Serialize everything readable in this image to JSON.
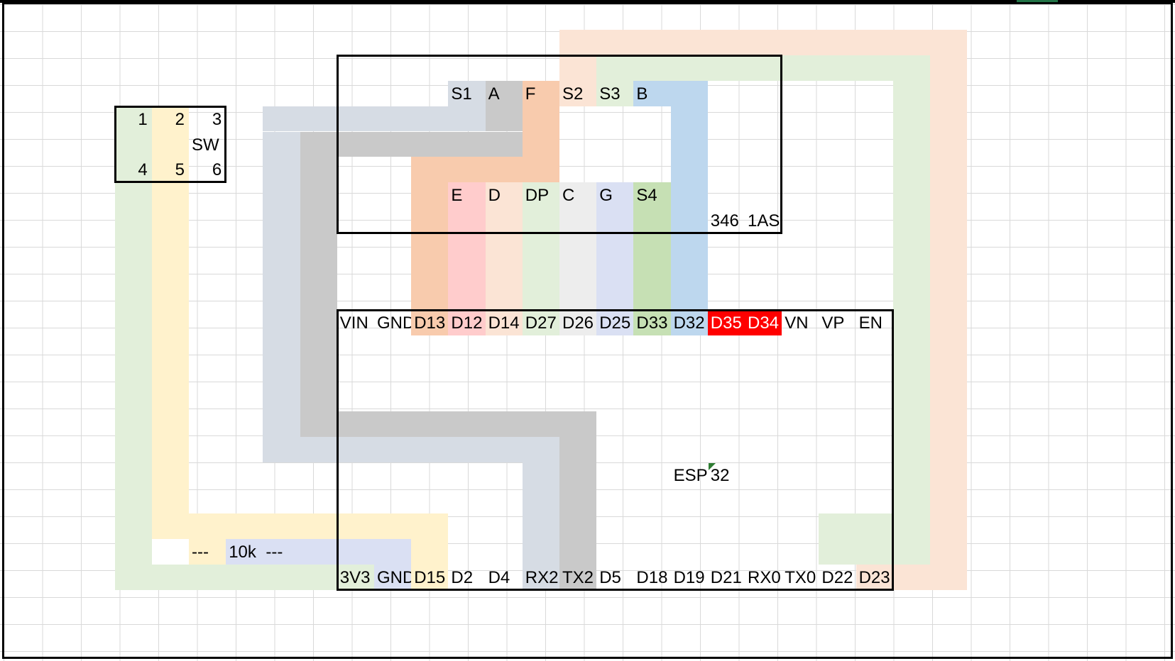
{
  "colors": {
    "green": "#e2efda",
    "yellow": "#fff2cc",
    "slate": "#d6dce4",
    "gray": "#c9c9c9",
    "orange": "#f8cbad",
    "peach": "#fbe4d5",
    "blue": "#bdd7ee",
    "pink": "#ffcccc",
    "lightgray": "#ededed",
    "lavender": "#dae0f3",
    "midgreen": "#c6e0b4",
    "red": "#ff0000",
    "cornertab": "#217346"
  },
  "switch": {
    "pins_top": [
      "1",
      "2",
      "3"
    ],
    "label": "SW",
    "pins_bottom": [
      "4",
      "5",
      "6"
    ]
  },
  "display": {
    "top_pins": [
      "S1",
      "A",
      "F",
      "S2",
      "S3",
      "B"
    ],
    "bottom_pins": [
      "E",
      "D",
      "DP",
      "C",
      "G",
      "S4"
    ],
    "part_number": [
      "346",
      "1AS"
    ]
  },
  "esp32": {
    "label_left": "ESP",
    "label_right": "32",
    "top_pins": [
      "VIN",
      "GND",
      "D13",
      "D12",
      "D14",
      "D27",
      "D26",
      "D25",
      "D33",
      "D32",
      "D35",
      "D34",
      "VN",
      "VP",
      "EN"
    ],
    "bottom_pins": [
      "3V3",
      "GND",
      "D15",
      "D2",
      "D4",
      "RX2",
      "TX2",
      "D5",
      "D18",
      "D19",
      "D21",
      "RX0",
      "TX0",
      "D22",
      "D23"
    ]
  },
  "resistor": {
    "dash_left": "---",
    "value": "10k",
    "dash_right": "---"
  }
}
